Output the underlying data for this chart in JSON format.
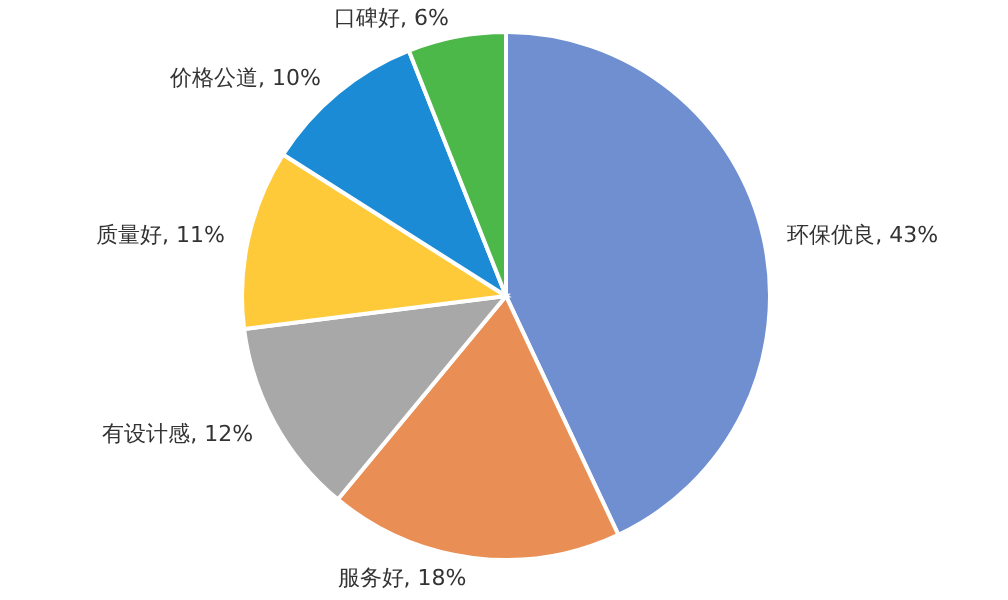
{
  "chart_data": {
    "type": "pie",
    "categories": [
      "环保优良",
      "服务好",
      "有设计感",
      "质量好",
      "价格公道",
      "口碑好"
    ],
    "values": [
      43,
      18,
      12,
      11,
      10,
      6
    ],
    "value_labels": [
      "43%",
      "18%",
      "12%",
      "11%",
      "10%",
      "6%"
    ],
    "colors": [
      "#6f8fd0",
      "#e98f55",
      "#a8a8a8",
      "#ffca3a",
      "#1b8bd6",
      "#4db84a"
    ]
  }
}
